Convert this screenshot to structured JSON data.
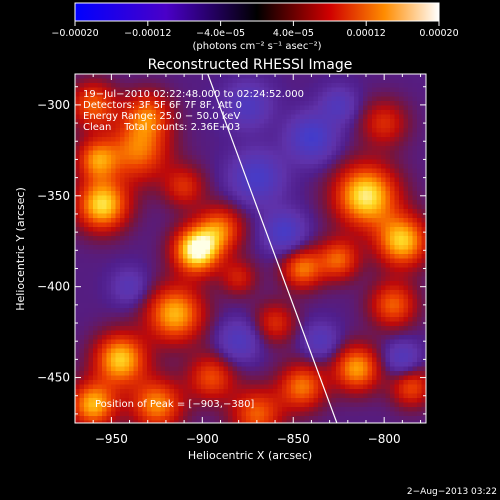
{
  "chart_data": {
    "type": "heatmap",
    "title": "Reconstructed RHESSI Image",
    "xlabel": "Heliocentric X (arcsec)",
    "ylabel": "Heliocentric Y (arcsec)",
    "xlim": [
      -970,
      -777
    ],
    "ylim": [
      -475,
      -283
    ],
    "x_ticks": [
      -950,
      -900,
      -850,
      -800
    ],
    "x_tick_labels": [
      "−950",
      "−900",
      "−850",
      "−800"
    ],
    "y_ticks": [
      -300,
      -350,
      -400,
      -450
    ],
    "y_tick_labels": [
      "−300",
      "−350",
      "−400",
      "−450"
    ],
    "colorbar": {
      "range": [
        -0.0002,
        0.0002
      ],
      "tick_values": [
        -0.0002,
        -0.00012,
        -4e-05,
        4e-05,
        0.00012,
        0.0002
      ],
      "tick_labels": [
        "−0.00020",
        "−0.00012",
        "−4.0e−05",
        "4.0e−05",
        "0.00012",
        "0.00020"
      ],
      "units_label": "(photons cm⁻² s⁻¹ asec⁻²)"
    },
    "annotations": [
      "19−Jul−2010 02:22:48.000 to 02:24:52.000",
      "Detectors: 3F 5F 6F 7F 8F, Att 0",
      "Energy Range: 25.0 − 50.0 keV",
      "Clean    Total counts: 2.36E+03"
    ],
    "peak": {
      "label": "Position of Peak = [−903,−380]",
      "x": -903,
      "y": -380
    },
    "limb_line": [
      {
        "x": -897,
        "y": -283
      },
      {
        "x": -826,
        "y": -475
      }
    ],
    "sources": [
      {
        "x": -903,
        "y": -380,
        "sigma": 9,
        "amp": 1.0
      },
      {
        "x": -890,
        "y": -368,
        "sigma": 9,
        "amp": 0.55
      },
      {
        "x": -955,
        "y": -355,
        "sigma": 10,
        "amp": 0.85
      },
      {
        "x": -958,
        "y": -330,
        "sigma": 8,
        "amp": 0.6
      },
      {
        "x": -935,
        "y": -325,
        "sigma": 12,
        "amp": 0.6
      },
      {
        "x": -930,
        "y": -305,
        "sigma": 9,
        "amp": 0.5
      },
      {
        "x": -960,
        "y": -300,
        "sigma": 9,
        "amp": 0.55
      },
      {
        "x": -910,
        "y": -345,
        "sigma": 8,
        "amp": 0.4
      },
      {
        "x": -915,
        "y": -415,
        "sigma": 11,
        "amp": 0.75
      },
      {
        "x": -945,
        "y": -440,
        "sigma": 10,
        "amp": 0.8
      },
      {
        "x": -960,
        "y": -465,
        "sigma": 9,
        "amp": 0.75
      },
      {
        "x": -925,
        "y": -465,
        "sigma": 10,
        "amp": 0.65
      },
      {
        "x": -895,
        "y": -450,
        "sigma": 9,
        "amp": 0.5
      },
      {
        "x": -870,
        "y": -470,
        "sigma": 10,
        "amp": 0.55
      },
      {
        "x": -845,
        "y": -455,
        "sigma": 9,
        "amp": 0.6
      },
      {
        "x": -860,
        "y": -420,
        "sigma": 8,
        "amp": 0.4
      },
      {
        "x": -845,
        "y": -390,
        "sigma": 8,
        "amp": 0.6
      },
      {
        "x": -880,
        "y": -395,
        "sigma": 7,
        "amp": 0.35
      },
      {
        "x": -810,
        "y": -350,
        "sigma": 12,
        "amp": 0.9
      },
      {
        "x": -790,
        "y": -375,
        "sigma": 10,
        "amp": 0.8
      },
      {
        "x": -825,
        "y": -385,
        "sigma": 8,
        "amp": 0.55
      },
      {
        "x": -795,
        "y": -410,
        "sigma": 9,
        "amp": 0.55
      },
      {
        "x": -815,
        "y": -445,
        "sigma": 9,
        "amp": 0.7
      },
      {
        "x": -785,
        "y": -455,
        "sigma": 8,
        "amp": 0.5
      },
      {
        "x": -800,
        "y": -310,
        "sigma": 9,
        "amp": 0.4
      },
      {
        "x": -840,
        "y": -318,
        "sigma": 9,
        "amp": -0.55
      },
      {
        "x": -870,
        "y": -340,
        "sigma": 10,
        "amp": -0.5
      },
      {
        "x": -855,
        "y": -370,
        "sigma": 8,
        "amp": -0.5
      },
      {
        "x": -875,
        "y": -300,
        "sigma": 9,
        "amp": -0.4
      },
      {
        "x": -880,
        "y": -430,
        "sigma": 8,
        "amp": -0.4
      },
      {
        "x": -835,
        "y": -430,
        "sigma": 7,
        "amp": -0.35
      },
      {
        "x": -790,
        "y": -440,
        "sigma": 7,
        "amp": -0.4
      },
      {
        "x": -940,
        "y": -400,
        "sigma": 7,
        "amp": -0.3
      },
      {
        "x": -825,
        "y": -300,
        "sigma": 7,
        "amp": -0.35
      }
    ]
  },
  "footer": {
    "timestamp": "2−Aug−2013 03:22"
  },
  "colors": {
    "background": "#000000",
    "text": "#ffffff",
    "limb": "#ffffff"
  }
}
